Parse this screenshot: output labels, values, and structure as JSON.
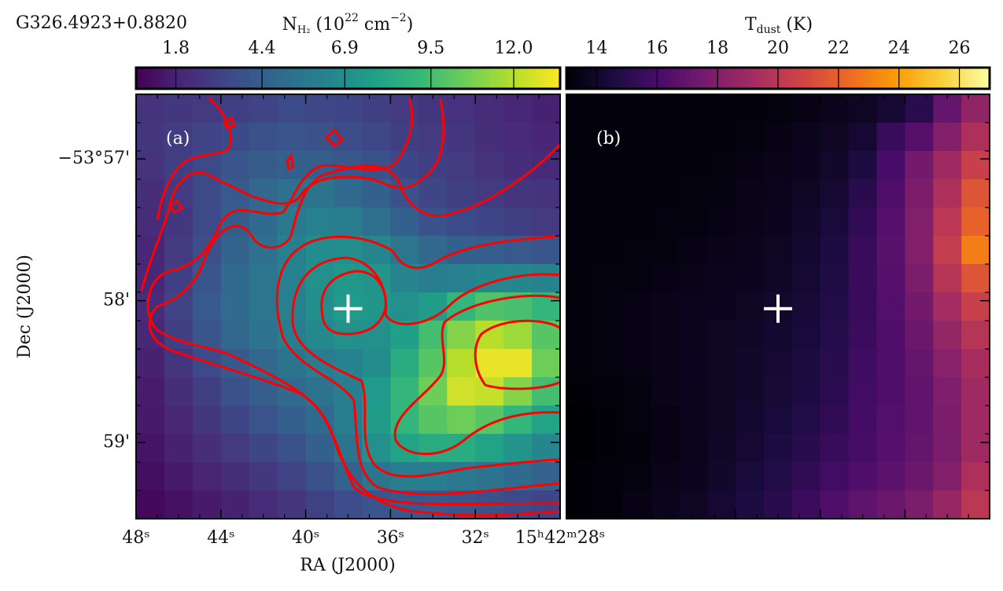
{
  "chart_data": [
    {
      "type": "heatmap",
      "source": "G326.4923+0.8820",
      "label": "(a)",
      "clabel": [
        "N",
        "H₂",
        " (10",
        "22",
        " cm",
        "−2",
        ")"
      ],
      "colormap": "viridis",
      "clim": [
        0.6,
        13.4
      ],
      "cticks": [
        1.8,
        4.4,
        6.9,
        9.5,
        {
          "value": 12,
          "label": "12.0"
        }
      ],
      "x_label": "RA (J2000)",
      "y_label": "Dec (J2000)",
      "xlim": [
        48,
        28
      ],
      "ylim": [
        -53.9923,
        -53.9424
      ],
      "xticks": [
        {
          "value": 48,
          "label": "48ˢ"
        },
        {
          "value": 44,
          "label": "44ˢ"
        },
        {
          "value": 40,
          "label": "40ˢ"
        },
        {
          "value": 36,
          "label": "36ˢ"
        },
        {
          "value": 32,
          "label": "32ˢ"
        },
        {
          "value": 28,
          "label": "15ʰ42ᵐ28ˢ"
        }
      ],
      "yticks": [
        {
          "value": -53.95,
          "label": "−53°57'"
        },
        {
          "value": -53.966667,
          "label": "58'"
        },
        {
          "value": -53.983333,
          "label": "59'"
        }
      ],
      "markers": [
        {
          "x": 38.0,
          "y": -53.9676
        }
      ],
      "z": [
        [
          2.5,
          2.7,
          2.8,
          3.0,
          3.2,
          3.5,
          3.4,
          3.3,
          3.0,
          2.8,
          2.6,
          2.4,
          2.2,
          2.0,
          1.8
        ],
        [
          2.6,
          2.9,
          3.2,
          3.5,
          3.8,
          4.0,
          3.8,
          3.6,
          3.4,
          3.0,
          2.8,
          2.6,
          2.3,
          2.1,
          1.9
        ],
        [
          2.5,
          3.0,
          3.5,
          4.0,
          4.3,
          4.5,
          4.4,
          4.1,
          3.8,
          3.3,
          3.0,
          2.8,
          2.5,
          2.3,
          2.1
        ],
        [
          2.3,
          2.8,
          3.5,
          4.2,
          4.8,
          5.3,
          5.5,
          5.0,
          4.5,
          3.8,
          3.3,
          3.0,
          2.8,
          2.6,
          2.5
        ],
        [
          2.2,
          2.7,
          3.5,
          4.3,
          5.0,
          5.8,
          6.2,
          6.0,
          5.3,
          4.5,
          3.8,
          3.5,
          3.3,
          3.0,
          2.8
        ],
        [
          2.0,
          2.8,
          3.7,
          4.6,
          5.3,
          6.2,
          6.8,
          6.9,
          6.5,
          5.6,
          4.8,
          4.5,
          4.4,
          4.2,
          4.0
        ],
        [
          2.0,
          3.0,
          4.0,
          5.0,
          5.6,
          6.3,
          7.0,
          7.4,
          7.2,
          6.4,
          6.0,
          6.2,
          6.5,
          6.5,
          6.3
        ],
        [
          2.2,
          3.2,
          4.2,
          5.0,
          5.6,
          6.2,
          6.9,
          7.5,
          7.3,
          7.0,
          7.6,
          9.0,
          9.8,
          9.6,
          9.0
        ],
        [
          2.0,
          3.0,
          4.0,
          4.8,
          5.4,
          6.0,
          6.6,
          7.0,
          7.0,
          7.8,
          9.5,
          11.0,
          12.0,
          11.5,
          10.0
        ],
        [
          1.8,
          2.6,
          3.5,
          4.2,
          4.8,
          5.5,
          6.0,
          6.3,
          6.8,
          8.5,
          10.0,
          12.0,
          13.0,
          13.0,
          10.5
        ],
        [
          1.6,
          2.3,
          3.0,
          3.8,
          4.4,
          5.0,
          5.5,
          6.0,
          7.5,
          9.0,
          10.5,
          12.5,
          12.3,
          11.0,
          9.5
        ],
        [
          1.5,
          2.0,
          2.7,
          3.3,
          3.9,
          4.5,
          5.0,
          6.0,
          7.6,
          9.0,
          10.0,
          10.5,
          10.0,
          9.0,
          8.0
        ],
        [
          1.3,
          1.8,
          2.3,
          2.8,
          3.3,
          3.8,
          4.5,
          5.5,
          7.0,
          8.0,
          8.5,
          8.5,
          8.0,
          7.2,
          6.5
        ],
        [
          1.1,
          1.5,
          1.9,
          2.3,
          2.7,
          3.2,
          3.8,
          4.6,
          5.6,
          6.0,
          6.0,
          5.8,
          5.5,
          5.0,
          4.6
        ],
        [
          0.9,
          1.2,
          1.5,
          1.8,
          2.2,
          2.6,
          3.1,
          3.6,
          4.0,
          4.2,
          4.2,
          4.0,
          3.8,
          3.5,
          3.3
        ]
      ]
    },
    {
      "type": "heatmap",
      "label": "(b)",
      "clabel": [
        "T",
        "dust",
        " (K)"
      ],
      "colormap": "inferno",
      "clim": [
        13,
        27
      ],
      "cticks": [
        14,
        16,
        18,
        20,
        22,
        24,
        26
      ],
      "xlim": [
        48,
        28
      ],
      "ylim": [
        -53.9923,
        -53.9424
      ],
      "markers": [
        {
          "x": 38.0,
          "y": -53.9676
        }
      ],
      "z": [
        [
          13.2,
          13.2,
          13.2,
          13.2,
          13.2,
          13.2,
          13.2,
          13.3,
          13.4,
          13.6,
          13.8,
          14.2,
          15.0,
          17.0,
          18.5
        ],
        [
          13.2,
          13.2,
          13.2,
          13.2,
          13.2,
          13.2,
          13.3,
          13.4,
          13.6,
          13.8,
          14.2,
          15.5,
          16.5,
          18.0,
          19.5
        ],
        [
          13.2,
          13.2,
          13.2,
          13.2,
          13.2,
          13.3,
          13.4,
          13.5,
          13.7,
          14.0,
          14.6,
          16.0,
          17.5,
          19.0,
          20.5
        ],
        [
          13.2,
          13.2,
          13.2,
          13.2,
          13.3,
          13.3,
          13.5,
          13.6,
          13.8,
          14.2,
          15.0,
          16.3,
          17.8,
          19.5,
          21.5
        ],
        [
          13.2,
          13.2,
          13.2,
          13.3,
          13.3,
          13.4,
          13.5,
          13.7,
          14.0,
          14.4,
          15.3,
          16.5,
          18.0,
          20.0,
          22.0
        ],
        [
          13.2,
          13.2,
          13.3,
          13.3,
          13.4,
          13.5,
          13.6,
          13.8,
          14.1,
          14.6,
          15.5,
          16.6,
          18.0,
          20.3,
          23.0
        ],
        [
          13.2,
          13.3,
          13.3,
          13.4,
          13.5,
          13.6,
          13.7,
          13.9,
          14.2,
          14.7,
          15.5,
          16.5,
          17.8,
          19.8,
          21.5
        ],
        [
          13.2,
          13.3,
          13.4,
          13.5,
          13.6,
          13.7,
          13.8,
          14.0,
          14.3,
          14.8,
          15.5,
          16.4,
          17.5,
          19.2,
          20.5
        ],
        [
          13.2,
          13.3,
          13.4,
          13.5,
          13.6,
          13.8,
          13.9,
          14.1,
          14.4,
          14.9,
          15.6,
          16.3,
          17.2,
          18.6,
          19.8
        ],
        [
          13.2,
          13.3,
          13.4,
          13.5,
          13.7,
          13.8,
          14.0,
          14.2,
          14.5,
          15.0,
          15.7,
          16.3,
          17.0,
          18.2,
          19.3
        ],
        [
          13.1,
          13.2,
          13.3,
          13.5,
          13.6,
          13.8,
          14.0,
          14.3,
          14.6,
          15.1,
          15.8,
          16.3,
          16.9,
          17.9,
          19.0
        ],
        [
          13.0,
          13.1,
          13.3,
          13.4,
          13.6,
          13.8,
          14.1,
          14.4,
          14.8,
          15.3,
          15.9,
          16.4,
          16.9,
          17.8,
          19.0
        ],
        [
          13.0,
          13.1,
          13.2,
          13.4,
          13.6,
          13.9,
          14.2,
          14.6,
          15.0,
          15.5,
          16.0,
          16.5,
          17.0,
          17.8,
          19.0
        ],
        [
          13.1,
          13.2,
          13.3,
          13.5,
          13.7,
          14.0,
          14.4,
          14.8,
          15.3,
          15.8,
          16.3,
          16.7,
          17.2,
          18.0,
          19.5
        ],
        [
          13.1,
          13.2,
          13.4,
          13.6,
          13.8,
          14.2,
          14.6,
          15.0,
          15.6,
          16.3,
          16.8,
          17.2,
          17.8,
          18.7,
          20.0
        ]
      ]
    }
  ]
}
